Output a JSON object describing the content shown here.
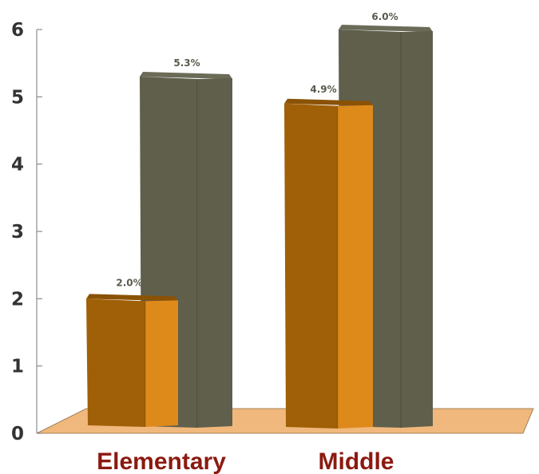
{
  "chart_data": {
    "type": "bar",
    "title": "",
    "xlabel": "",
    "ylabel": "",
    "ylim": [
      0,
      6
    ],
    "yticks": [
      "0",
      "1",
      "2",
      "3",
      "4",
      "5",
      "6"
    ],
    "categories": [
      "Elementary",
      "Middle"
    ],
    "series": [
      {
        "values": [
          2.0,
          4.9
        ],
        "labels": [
          "2.0%",
          "4.9%"
        ],
        "front_color": "#a06008",
        "side_color": "#de8a1b",
        "top_color": "#8a5205"
      },
      {
        "values": [
          5.3,
          6.0
        ],
        "labels": [
          "5.3%",
          "6.0%"
        ],
        "front_color": "#5f5f4c",
        "side_color": "#5f5f4c",
        "top_color": "#6b6b58"
      }
    ],
    "floor_color": "#f0b87c",
    "grid": false,
    "legend": "none"
  }
}
